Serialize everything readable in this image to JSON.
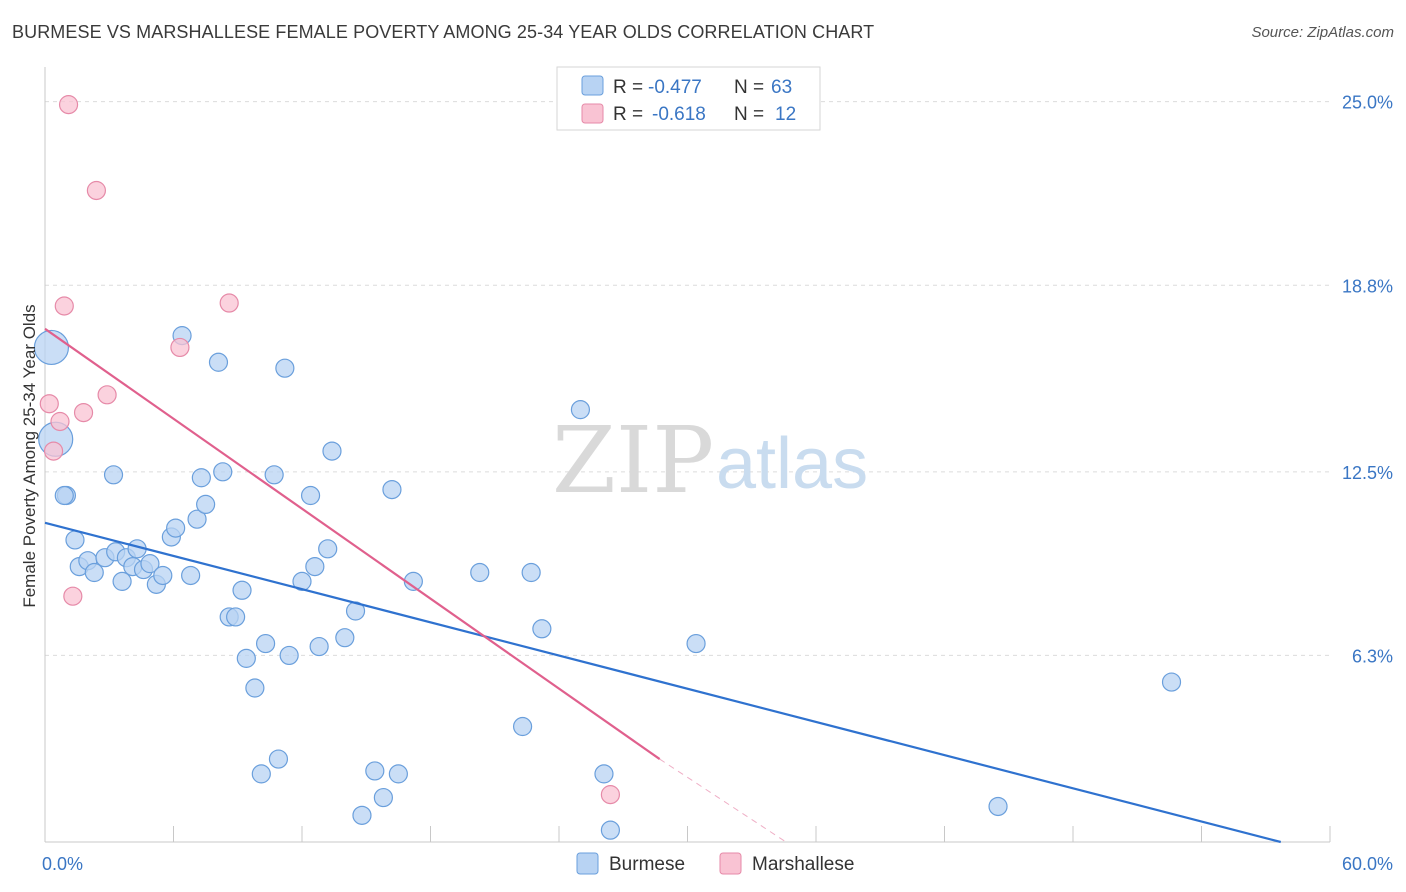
{
  "header": {
    "title": "BURMESE VS MARSHALLESE FEMALE POVERTY AMONG 25-34 YEAR OLDS CORRELATION CHART",
    "source": "Source: ZipAtlas.com"
  },
  "watermark": {
    "zip": "ZIP",
    "atlas": "atlas"
  },
  "legend": {
    "rows": [
      {
        "r_label": "R =",
        "r_value": "-0.477",
        "n_label": "N =",
        "n_value": "63"
      },
      {
        "r_label": "R =",
        "r_value": "-0.618",
        "n_label": "N =",
        "n_value": "12"
      }
    ]
  },
  "chart_data": {
    "type": "scatter",
    "title": "BURMESE VS MARSHALLESE FEMALE POVERTY AMONG 25-34 YEAR OLDS CORRELATION CHART",
    "xlabel": "",
    "ylabel": "Female Poverty Among 25-34 Year Olds",
    "xlim": [
      0,
      60
    ],
    "ylim": [
      0,
      25.9
    ],
    "x_tick_labels": [
      "0.0%",
      "60.0%"
    ],
    "y_ticks": [
      6.3,
      12.5,
      18.8,
      25.0
    ],
    "y_tick_labels": [
      "6.3%",
      "12.5%",
      "18.8%",
      "25.0%"
    ],
    "grid": true,
    "legend_position": "top-center",
    "colors": {
      "burmese_fill": "#b8d3f3",
      "burmese_stroke": "#6a9fdc",
      "burmese_line": "#2f72cf",
      "marshallese_fill": "#f9c3d3",
      "marshallese_stroke": "#e68aa8",
      "marshallese_line": "#e0608d"
    },
    "series": [
      {
        "name": "Burmese",
        "trend": {
          "x": [
            0,
            57.7
          ],
          "y": [
            10.78,
            0.0
          ]
        },
        "points": [
          {
            "x": 0.3,
            "y": 16.7,
            "big": true
          },
          {
            "x": 0.5,
            "y": 13.6,
            "big": true
          },
          {
            "x": 1.0,
            "y": 11.7,
            "big": false
          },
          {
            "x": 0.9,
            "y": 11.7,
            "big": false
          },
          {
            "x": 1.4,
            "y": 10.2,
            "big": false
          },
          {
            "x": 1.6,
            "y": 9.3,
            "big": false
          },
          {
            "x": 2.0,
            "y": 9.5,
            "big": false
          },
          {
            "x": 2.3,
            "y": 9.1,
            "big": false
          },
          {
            "x": 2.8,
            "y": 9.6,
            "big": false
          },
          {
            "x": 3.2,
            "y": 12.4,
            "big": false
          },
          {
            "x": 3.3,
            "y": 9.8,
            "big": false
          },
          {
            "x": 3.6,
            "y": 8.8,
            "big": false
          },
          {
            "x": 3.8,
            "y": 9.6,
            "big": false
          },
          {
            "x": 4.1,
            "y": 9.3,
            "big": false
          },
          {
            "x": 4.3,
            "y": 9.9,
            "big": false
          },
          {
            "x": 4.6,
            "y": 9.2,
            "big": false
          },
          {
            "x": 4.9,
            "y": 9.4,
            "big": false
          },
          {
            "x": 5.2,
            "y": 8.7,
            "big": false
          },
          {
            "x": 5.5,
            "y": 9.0,
            "big": false
          },
          {
            "x": 5.9,
            "y": 10.3,
            "big": false
          },
          {
            "x": 6.1,
            "y": 10.6,
            "big": false
          },
          {
            "x": 6.4,
            "y": 17.1,
            "big": false
          },
          {
            "x": 6.8,
            "y": 9.0,
            "big": false
          },
          {
            "x": 7.1,
            "y": 10.9,
            "big": false
          },
          {
            "x": 7.3,
            "y": 12.3,
            "big": false
          },
          {
            "x": 7.5,
            "y": 11.4,
            "big": false
          },
          {
            "x": 8.1,
            "y": 16.2,
            "big": false
          },
          {
            "x": 8.3,
            "y": 12.5,
            "big": false
          },
          {
            "x": 8.6,
            "y": 7.6,
            "big": false
          },
          {
            "x": 8.9,
            "y": 7.6,
            "big": false
          },
          {
            "x": 9.2,
            "y": 8.5,
            "big": false
          },
          {
            "x": 9.4,
            "y": 6.2,
            "big": false
          },
          {
            "x": 9.8,
            "y": 5.2,
            "big": false
          },
          {
            "x": 10.1,
            "y": 2.3,
            "big": false
          },
          {
            "x": 10.3,
            "y": 6.7,
            "big": false
          },
          {
            "x": 10.9,
            "y": 2.8,
            "big": false
          },
          {
            "x": 11.2,
            "y": 16.0,
            "big": false
          },
          {
            "x": 11.4,
            "y": 6.3,
            "big": false
          },
          {
            "x": 10.7,
            "y": 12.4,
            "big": false
          },
          {
            "x": 12.0,
            "y": 8.8,
            "big": false
          },
          {
            "x": 12.4,
            "y": 11.7,
            "big": false
          },
          {
            "x": 12.6,
            "y": 9.3,
            "big": false
          },
          {
            "x": 12.8,
            "y": 6.6,
            "big": false
          },
          {
            "x": 13.2,
            "y": 9.9,
            "big": false
          },
          {
            "x": 13.4,
            "y": 13.2,
            "big": false
          },
          {
            "x": 14.0,
            "y": 6.9,
            "big": false
          },
          {
            "x": 14.5,
            "y": 7.8,
            "big": false
          },
          {
            "x": 14.8,
            "y": 0.9,
            "big": false
          },
          {
            "x": 15.4,
            "y": 2.4,
            "big": false
          },
          {
            "x": 15.8,
            "y": 1.5,
            "big": false
          },
          {
            "x": 16.2,
            "y": 11.9,
            "big": false
          },
          {
            "x": 16.5,
            "y": 2.3,
            "big": false
          },
          {
            "x": 17.2,
            "y": 8.8,
            "big": false
          },
          {
            "x": 20.3,
            "y": 9.1,
            "big": false
          },
          {
            "x": 22.3,
            "y": 3.9,
            "big": false
          },
          {
            "x": 22.7,
            "y": 9.1,
            "big": false
          },
          {
            "x": 23.2,
            "y": 7.2,
            "big": false
          },
          {
            "x": 25.0,
            "y": 14.6,
            "big": false
          },
          {
            "x": 26.1,
            "y": 2.3,
            "big": false
          },
          {
            "x": 26.4,
            "y": 0.4,
            "big": false
          },
          {
            "x": 30.4,
            "y": 6.7,
            "big": false
          },
          {
            "x": 44.5,
            "y": 1.2,
            "big": false
          },
          {
            "x": 52.6,
            "y": 5.4,
            "big": false
          }
        ]
      },
      {
        "name": "Marshallese",
        "trend": {
          "x": [
            0,
            28.7
          ],
          "y": [
            17.33,
            2.8
          ]
        },
        "trend_dashed": {
          "x": [
            28.7,
            34.6
          ],
          "y": [
            2.8,
            0.0
          ]
        },
        "points": [
          {
            "x": 0.2,
            "y": 14.8,
            "big": false
          },
          {
            "x": 0.4,
            "y": 13.2,
            "big": false
          },
          {
            "x": 0.7,
            "y": 14.2,
            "big": false
          },
          {
            "x": 0.9,
            "y": 18.1,
            "big": false
          },
          {
            "x": 1.1,
            "y": 24.9,
            "big": false
          },
          {
            "x": 1.3,
            "y": 8.3,
            "big": false
          },
          {
            "x": 1.8,
            "y": 14.5,
            "big": false
          },
          {
            "x": 2.4,
            "y": 22.0,
            "big": false
          },
          {
            "x": 2.9,
            "y": 15.1,
            "big": false
          },
          {
            "x": 6.3,
            "y": 16.7,
            "big": false
          },
          {
            "x": 8.6,
            "y": 18.2,
            "big": false
          },
          {
            "x": 26.4,
            "y": 1.6,
            "big": false
          }
        ]
      }
    ]
  },
  "bottom_legend": {
    "items": [
      "Burmese",
      "Marshallese"
    ]
  }
}
